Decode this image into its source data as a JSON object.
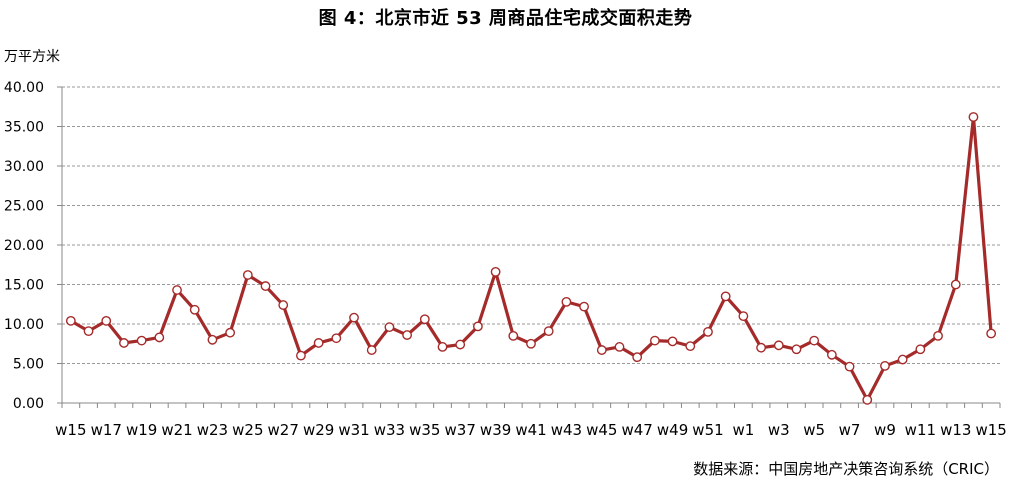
{
  "chart_data": {
    "type": "line",
    "title": "图 4：北京市近 53 周商品住宅成交面积走势",
    "ylabel": "万平方米",
    "ylim": [
      0,
      40
    ],
    "yticks": [
      "0.00",
      "5.00",
      "10.00",
      "15.00",
      "20.00",
      "25.00",
      "30.00",
      "35.00",
      "40.00"
    ],
    "grid": true,
    "colors": {
      "line": "#a52a2a",
      "marker_fill": "#ffffff",
      "grid": "#999999",
      "axis": "#888888"
    },
    "categories": [
      "w15",
      "w16",
      "w17",
      "w18",
      "w19",
      "w20",
      "w21",
      "w22",
      "w23",
      "w24",
      "w25",
      "w26",
      "w27",
      "w28",
      "w29",
      "w30",
      "w31",
      "w32",
      "w33",
      "w34",
      "w35",
      "w36",
      "w37",
      "w38",
      "w39",
      "w40",
      "w41",
      "w42",
      "w43",
      "w44",
      "w45",
      "w46",
      "w47",
      "w48",
      "w49",
      "w50",
      "w51",
      "w52",
      "w1",
      "w2",
      "w3",
      "w4",
      "w5",
      "w6",
      "w7",
      "w8",
      "w9",
      "w10",
      "w11",
      "w12",
      "w13",
      "w14",
      "w15"
    ],
    "tick_labels": [
      "w15",
      "w17",
      "w19",
      "w21",
      "w23",
      "w25",
      "w27",
      "w29",
      "w31",
      "w33",
      "w35",
      "w37",
      "w39",
      "w41",
      "w43",
      "w45",
      "w47",
      "w49",
      "w51",
      "w1",
      "w3",
      "w5",
      "w7",
      "w9",
      "w11",
      "w13",
      "w15"
    ],
    "series": [
      {
        "values": [
          10.4,
          9.1,
          10.4,
          7.6,
          7.9,
          8.3,
          14.3,
          11.8,
          8.0,
          8.9,
          16.2,
          14.8,
          12.4,
          6.0,
          7.6,
          8.2,
          10.8,
          6.7,
          9.6,
          8.6,
          10.6,
          7.1,
          7.4,
          9.7,
          16.6,
          8.5,
          7.5,
          9.1,
          12.8,
          12.2,
          6.7,
          7.1,
          5.8,
          7.9,
          7.8,
          7.2,
          9.0,
          13.5,
          11.0,
          7.0,
          7.3,
          6.8,
          7.9,
          6.1,
          4.6,
          0.4,
          4.7,
          5.5,
          6.8,
          8.5,
          15.0,
          36.2,
          8.8
        ]
      }
    ]
  },
  "source_note": "数据来源：中国房地产决策咨询系统（CRIC）"
}
